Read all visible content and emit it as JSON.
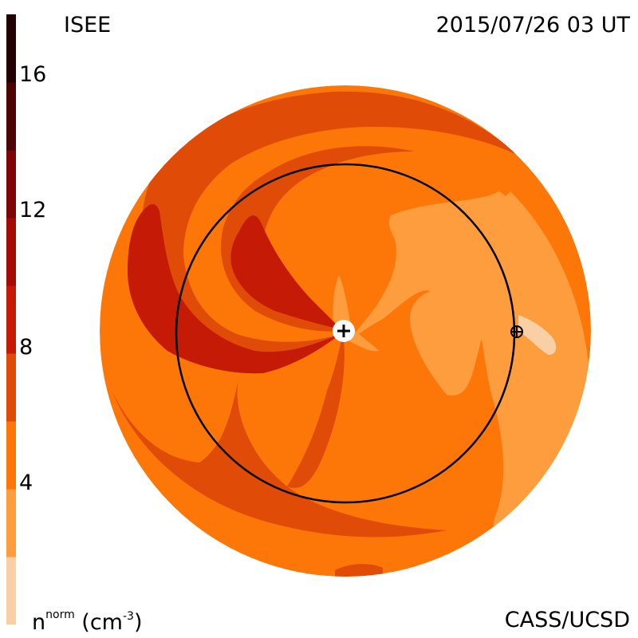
{
  "header": {
    "org": "ISEE",
    "timestamp": "2015/07/26 03 UT"
  },
  "footer": {
    "credit": "CASS/UCSD",
    "units_base": "n",
    "units_sup": "norm",
    "units_open": " (cm",
    "units_exp": "-3",
    "units_close": ")"
  },
  "colorbar": {
    "ticks": [
      "4",
      "8",
      "12",
      "16"
    ],
    "levels": [
      {
        "from": 0,
        "to": 2,
        "color": "#f9cfa6"
      },
      {
        "from": 2,
        "to": 4,
        "color": "#fd9d3e"
      },
      {
        "from": 4,
        "to": 6,
        "color": "#fd7708"
      },
      {
        "from": 6,
        "to": 8,
        "color": "#e14b08"
      },
      {
        "from": 8,
        "to": 10,
        "color": "#c51b06"
      },
      {
        "from": 10,
        "to": 12,
        "color": "#a30c04"
      },
      {
        "from": 12,
        "to": 14,
        "color": "#7d0505"
      },
      {
        "from": 14,
        "to": 16,
        "color": "#4d0303"
      },
      {
        "from": 16,
        "to": 18,
        "color": "#210102"
      }
    ]
  },
  "map": {
    "background_color": "#fd7708",
    "sun_symbol": "sun-icon",
    "earth_symbol": "earth-icon",
    "orbit": "earth-orbit"
  }
}
